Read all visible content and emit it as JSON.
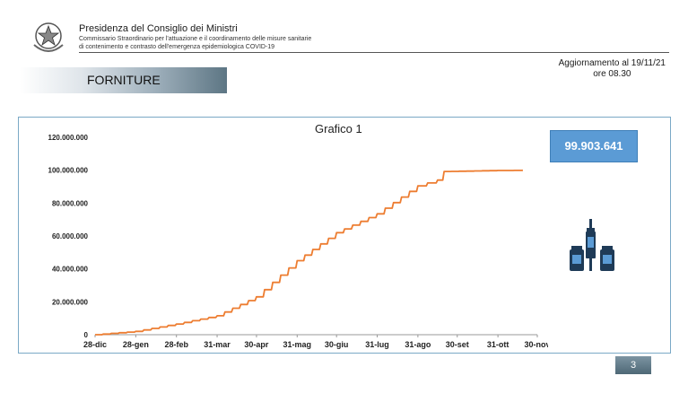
{
  "header": {
    "org": "Presidenza del Consiglio dei Ministri",
    "sub1": "Commissario Straordinario per l'attuazione e il coordinamento delle misure sanitarie",
    "sub2": "di contenimento e contrasto dell'emergenza epidemiologica COVID-19"
  },
  "update": {
    "line1": "Aggiornamento al 19/11/21",
    "line2": "ore 08.30"
  },
  "section_title": "FORNITURE",
  "badge": "99.903.641",
  "page_number": "3",
  "colors": {
    "line": "#ed7d31",
    "badge": "#5b9bd5",
    "panel_border": "#7aa9c6"
  },
  "icons": [
    "italian-republic-emblem-icon",
    "vaccine-vials-icon"
  ],
  "chart_data": {
    "type": "line",
    "title": "Grafico 1",
    "xlabel": "",
    "ylabel": "",
    "x_ticks": [
      "28-dic",
      "28-gen",
      "28-feb",
      "31-mar",
      "30-apr",
      "31-mag",
      "30-giu",
      "31-lug",
      "31-ago",
      "30-set",
      "31-ott",
      "30-nov"
    ],
    "y_ticks": [
      "0",
      "20.000.000",
      "40.000.000",
      "60.000.000",
      "80.000.000",
      "100.000.000",
      "120.000.000"
    ],
    "ylim": [
      0,
      120000000
    ],
    "grid": false,
    "series": [
      {
        "name": "",
        "points": [
          [
            "28-dic",
            0
          ],
          [
            "28-gen",
            2000000
          ],
          [
            "28-feb",
            6500000
          ],
          [
            "31-mar",
            11500000
          ],
          [
            "30-apr",
            23000000
          ],
          [
            "31-mag",
            45000000
          ],
          [
            "30-giu",
            62000000
          ],
          [
            "31-lug",
            73500000
          ],
          [
            "31-ago",
            90500000
          ],
          [
            "15-set",
            94000000
          ],
          [
            "20-set",
            99200000
          ],
          [
            "31-ott",
            99800000
          ],
          [
            "19-nov",
            99903641
          ]
        ]
      }
    ]
  }
}
